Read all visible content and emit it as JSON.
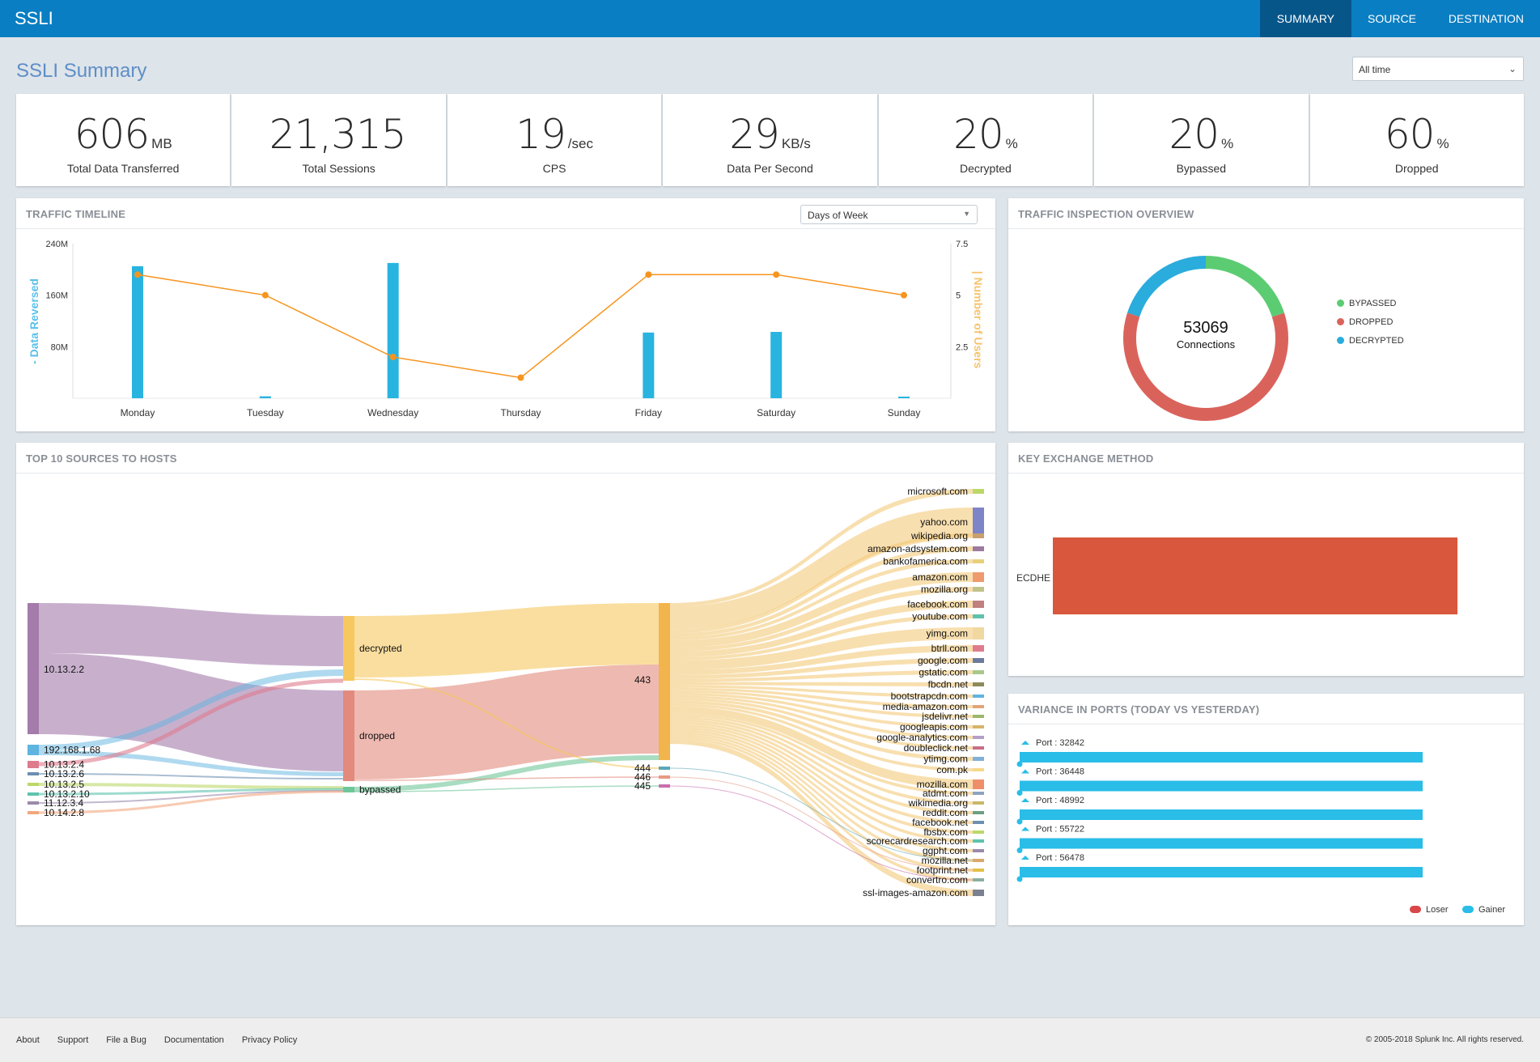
{
  "app": {
    "title": "SSLI"
  },
  "nav": [
    {
      "label": "SUMMARY",
      "active": true
    },
    {
      "label": "SOURCE",
      "active": false
    },
    {
      "label": "DESTINATION",
      "active": false
    }
  ],
  "page": {
    "title": "SSLI Summary",
    "time_range": "All time"
  },
  "kpis": [
    {
      "value": "606",
      "unit": "MB",
      "label": "Total Data Transferred"
    },
    {
      "value": "21,315",
      "unit": "",
      "label": "Total Sessions"
    },
    {
      "value": "19",
      "unit": "/sec",
      "label": "CPS"
    },
    {
      "value": "29",
      "unit": "KB/s",
      "label": "Data Per Second"
    },
    {
      "value": "20",
      "unit": "%",
      "label": "Decrypted"
    },
    {
      "value": "20",
      "unit": "%",
      "label": "Bypassed"
    },
    {
      "value": "60",
      "unit": "%",
      "label": "Dropped"
    }
  ],
  "traffic_timeline": {
    "title": "TRAFFIC TIMELINE",
    "dropdown": "Days of Week",
    "chart_data": {
      "type": "bar",
      "categories": [
        "Monday",
        "Tuesday",
        "Wednesday",
        "Thursday",
        "Friday",
        "Saturday",
        "Sunday"
      ],
      "series": [
        {
          "name": "- Data Reversed",
          "type": "bar",
          "values": [
            205,
            3,
            210,
            0,
            102,
            103,
            1
          ],
          "unit": "M",
          "color": "#29b4e0"
        },
        {
          "name": "| Number of Users",
          "type": "line",
          "values": [
            6,
            5,
            2,
            1,
            6,
            6,
            5
          ],
          "color": "#f7941d"
        }
      ],
      "y_left": {
        "label": "- Data Reversed",
        "ticks": [
          "80M",
          "160M",
          "240M"
        ],
        "range": [
          0,
          240
        ]
      },
      "y_right": {
        "label": "| Number of Users",
        "ticks": [
          "2.5",
          "5",
          "7.5"
        ],
        "range": [
          0,
          7.5
        ]
      }
    }
  },
  "inspection": {
    "title": "TRAFFIC INSPECTION OVERVIEW",
    "center_value": "53069",
    "center_label": "Connections",
    "chart_data": {
      "type": "pie",
      "series": [
        {
          "name": "BYPASSED",
          "value": 20,
          "color": "#5ccc73"
        },
        {
          "name": "DROPPED",
          "value": 60,
          "color": "#d9635b"
        },
        {
          "name": "DECRYPTED",
          "value": 20,
          "color": "#2aacdc"
        }
      ]
    }
  },
  "sankey": {
    "title": "TOP 10 SOURCES TO HOSTS",
    "sources": [
      {
        "name": "10.13.2.2",
        "color": "#a47bab"
      },
      {
        "name": "192.168.1.68",
        "color": "#5fb4e0"
      },
      {
        "name": "10.13.2.4",
        "color": "#de7c8e"
      },
      {
        "name": "10.13.2.6",
        "color": "#6d8fb0"
      },
      {
        "name": "10.13.2.5",
        "color": "#bcd86a"
      },
      {
        "name": "10.13.2.10",
        "color": "#5dc3ad"
      },
      {
        "name": "11.12.3.4",
        "color": "#9b8aab"
      },
      {
        "name": "10.14.2.8",
        "color": "#f2a77e"
      }
    ],
    "actions": [
      {
        "name": "decrypted",
        "color": "#f6c85f"
      },
      {
        "name": "dropped",
        "color": "#e38a7c"
      },
      {
        "name": "bypassed",
        "color": "#6fc699"
      }
    ],
    "ports": [
      {
        "name": "443",
        "color": "#f2b44c"
      },
      {
        "name": "444",
        "color": "#5aa7b8"
      },
      {
        "name": "446",
        "color": "#e89a84"
      },
      {
        "name": "445",
        "color": "#c96fae"
      }
    ],
    "hosts": [
      {
        "name": "microsoft.com",
        "color": "#bcd86a"
      },
      {
        "name": "yahoo.com",
        "color": "#7e84c8"
      },
      {
        "name": "wikipedia.org",
        "color": "#c8a070"
      },
      {
        "name": "amazon-adsystem.com",
        "color": "#9b7a9e"
      },
      {
        "name": "bankofamerica.com",
        "color": "#e6d07a"
      },
      {
        "name": "amazon.com",
        "color": "#ef9a6e"
      },
      {
        "name": "mozilla.org",
        "color": "#c0c48a"
      },
      {
        "name": "facebook.com",
        "color": "#c08080"
      },
      {
        "name": "youtube.com",
        "color": "#5dc3ad"
      },
      {
        "name": "yimg.com",
        "color": "#f0d8a0"
      },
      {
        "name": "btrll.com",
        "color": "#de7c8e"
      },
      {
        "name": "google.com",
        "color": "#6d7aa0"
      },
      {
        "name": "gstatic.com",
        "color": "#a9c98c"
      },
      {
        "name": "fbcdn.net",
        "color": "#8a8a5a"
      },
      {
        "name": "bootstrapcdn.com",
        "color": "#5fb4e0"
      },
      {
        "name": "media-amazon.com",
        "color": "#e2a47a"
      },
      {
        "name": "jsdelivr.net",
        "color": "#9bb86a"
      },
      {
        "name": "googleapis.com",
        "color": "#d7b46a"
      },
      {
        "name": "google-analytics.com",
        "color": "#b3a0c8"
      },
      {
        "name": "doubleclick.net",
        "color": "#c96f88"
      },
      {
        "name": "ytimg.com",
        "color": "#80b0d8"
      },
      {
        "name": "com.pk",
        "color": "#f6d88a"
      },
      {
        "name": "mozilla.com",
        "color": "#ee8f6a"
      },
      {
        "name": "atdmt.com",
        "color": "#8ba4c0"
      },
      {
        "name": "wikimedia.org",
        "color": "#c8b86a"
      },
      {
        "name": "reddit.com",
        "color": "#6aa084"
      },
      {
        "name": "facebook.net",
        "color": "#6d8fb0"
      },
      {
        "name": "fbsbx.com",
        "color": "#bcd86a"
      },
      {
        "name": "scorecardresearch.com",
        "color": "#5dc3ad"
      },
      {
        "name": "ggpht.com",
        "color": "#9b8aab"
      },
      {
        "name": "mozilla.net",
        "color": "#d9a86a"
      },
      {
        "name": "footprint.net",
        "color": "#e3c04a"
      },
      {
        "name": "convertro.com",
        "color": "#8ab0a0"
      },
      {
        "name": "ssl-images-amazon.com",
        "color": "#7a8090"
      }
    ]
  },
  "key_exchange": {
    "title": "KEY EXCHANGE METHOD",
    "chart_data": {
      "type": "bar",
      "categories": [
        "ECDHE"
      ],
      "values": [
        1
      ],
      "color": "#d9573c"
    }
  },
  "ports_variance": {
    "title": "VARIANCE IN PORTS (TODAY VS YESTERDAY)",
    "chart_data": {
      "type": "bar",
      "categories": [
        "Port : 32842",
        "Port : 36448",
        "Port : 48992",
        "Port : 55722",
        "Port : 56478"
      ],
      "series": [
        {
          "name": "Gainer",
          "values": [
            1,
            1,
            1,
            1,
            1
          ],
          "color": "#29bde8"
        },
        {
          "name": "Loser",
          "values": [
            0,
            0,
            0,
            0,
            0
          ],
          "color": "#d9474a"
        }
      ],
      "legend": [
        "Loser",
        "Gainer"
      ]
    }
  },
  "footer": {
    "links": [
      "About",
      "Support",
      "File a Bug",
      "Documentation",
      "Privacy Policy"
    ],
    "copyright": "© 2005-2018 Splunk Inc. All rights reserved."
  }
}
